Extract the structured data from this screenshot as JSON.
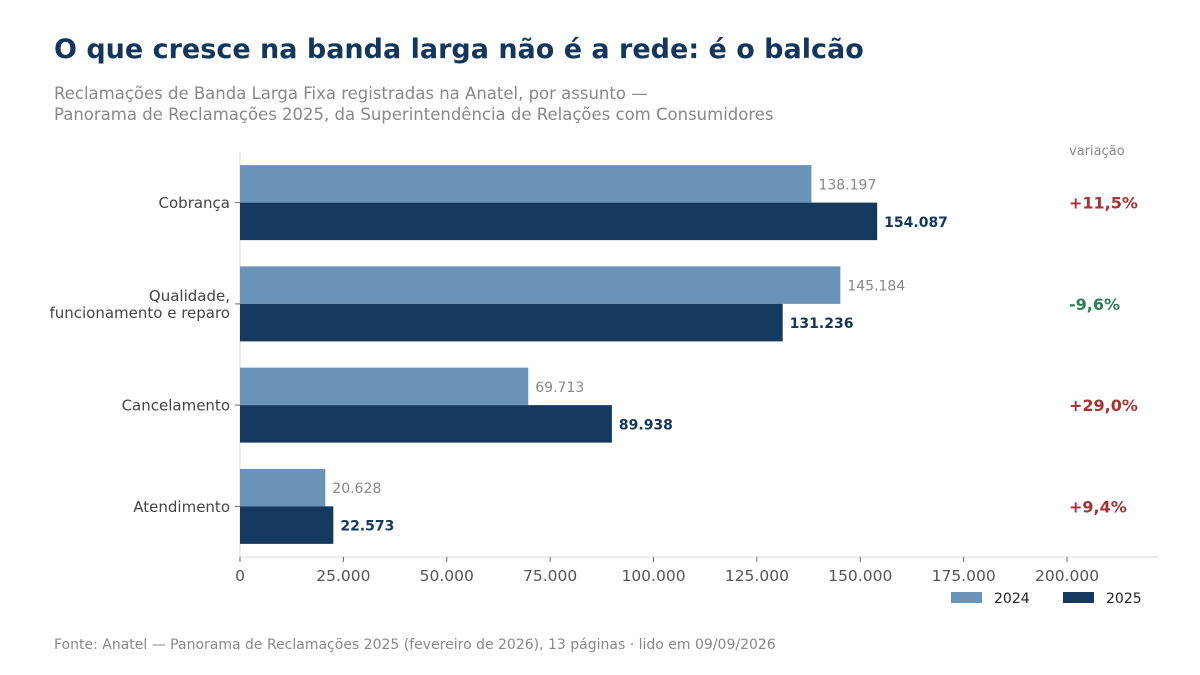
{
  "title": "O que cresce na banda larga não é a rede: é o balcão",
  "subtitle_lines": [
    "Reclamações de Banda Larga Fixa registradas na Anatel, por assunto —",
    "Panorama de Reclamações 2025, da Superintendência de Relações com Consumidores"
  ],
  "source": "Fonte: Anatel — Panorama de Reclamações 2025 (fevereiro de 2026), 13 páginas · lido em 09/09/2026",
  "chart_data": {
    "type": "bar",
    "orientation": "horizontal",
    "categories": [
      [
        "Cobrança"
      ],
      [
        "Qualidade,",
        "funcionamento e reparo"
      ],
      [
        "Cancelamento"
      ],
      [
        "Atendimento"
      ]
    ],
    "series": [
      {
        "name": "2024",
        "values": [
          138197,
          145184,
          69713,
          20628
        ],
        "labels": [
          "138.197",
          "145.184",
          "69.713",
          "20.628"
        ],
        "color": "#6b93b8"
      },
      {
        "name": "2025",
        "values": [
          154087,
          131236,
          89938,
          22573
        ],
        "labels": [
          "154.087",
          "131.236",
          "89.938",
          "22.573"
        ],
        "color": "#14385e"
      }
    ],
    "variation_header": "variação",
    "variation": [
      "+11,5%",
      "-9,6%",
      "+29,0%",
      "+9,4%"
    ],
    "variation_colors": [
      "#a83232",
      "#2e7d54",
      "#a83232",
      "#a83232"
    ],
    "xlim": [
      0,
      222000
    ],
    "xticks": [
      0,
      25000,
      50000,
      75000,
      100000,
      125000,
      150000,
      175000,
      200000
    ],
    "xtick_labels": [
      "0",
      "25.000",
      "50.000",
      "75.000",
      "100.000",
      "125.000",
      "150.000",
      "175.000",
      "200.000"
    ],
    "legend_position": "bottom-right",
    "grid": false
  }
}
